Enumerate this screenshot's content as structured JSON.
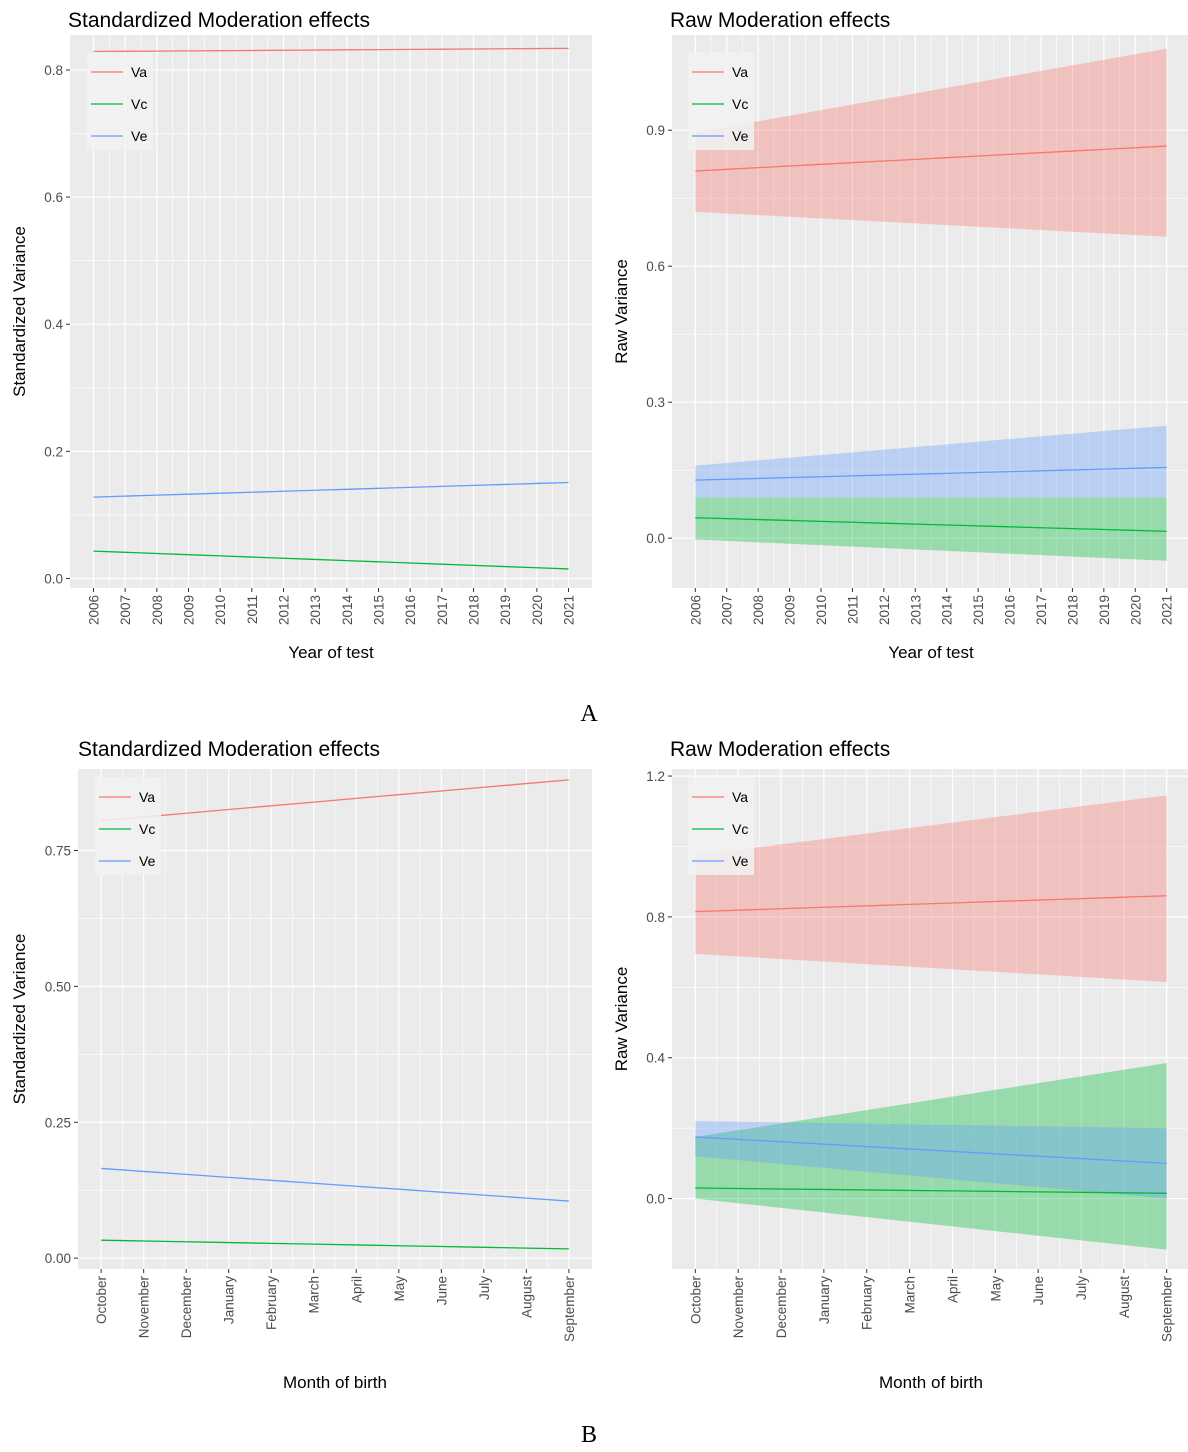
{
  "figure": {
    "panel_labels": [
      "A",
      "B"
    ]
  },
  "colors": {
    "va": "#F8766D",
    "vc": "#00BA38",
    "ve": "#619CFF",
    "panel_bg": "#EBEBEB",
    "grid": "#FFFFFF",
    "text": "#000000",
    "tick_text": "#4D4D4D"
  },
  "chart_data": [
    {
      "type": "line",
      "title": "Standardized Moderation effects",
      "xlabel": "Year of test",
      "ylabel": "Standardized Variance",
      "categories": [
        "2006",
        "2007",
        "2008",
        "2009",
        "2010",
        "2011",
        "2012",
        "2013",
        "2014",
        "2015",
        "2016",
        "2017",
        "2018",
        "2019",
        "2020",
        "2021"
      ],
      "ylim": [
        -0.015,
        0.855
      ],
      "yticks": [
        0.0,
        0.2,
        0.4,
        0.6,
        0.8
      ],
      "ytick_labels": [
        "0.0",
        "0.2",
        "0.4",
        "0.6",
        "0.8"
      ],
      "legend": "top-left",
      "grid": true,
      "series": [
        {
          "name": "Va",
          "color": "#F8766D",
          "start": 0.829,
          "end": 0.834
        },
        {
          "name": "Vc",
          "color": "#00BA38",
          "start": 0.043,
          "end": 0.015
        },
        {
          "name": "Ve",
          "color": "#619CFF",
          "start": 0.128,
          "end": 0.151
        }
      ]
    },
    {
      "type": "line",
      "title": "Raw Moderation effects",
      "xlabel": "Year of test",
      "ylabel": "Raw Variance",
      "categories": [
        "2006",
        "2007",
        "2008",
        "2009",
        "2010",
        "2011",
        "2012",
        "2013",
        "2014",
        "2015",
        "2016",
        "2017",
        "2018",
        "2019",
        "2020",
        "2021"
      ],
      "ylim": [
        -0.11,
        1.11
      ],
      "yticks": [
        0.0,
        0.3,
        0.6,
        0.9
      ],
      "ytick_labels": [
        "0.0",
        "0.3",
        "0.6",
        "0.9"
      ],
      "legend": "top-left",
      "grid": true,
      "series": [
        {
          "name": "Va",
          "color": "#F8766D",
          "start": 0.81,
          "end": 0.865,
          "lower_start": 0.72,
          "lower_end": 0.665,
          "upper_start": 0.895,
          "upper_end": 1.08
        },
        {
          "name": "Vc",
          "color": "#00BA38",
          "start": 0.045,
          "end": 0.015,
          "lower_start": -0.003,
          "lower_end": -0.05,
          "upper_start": 0.09,
          "upper_end": 0.09
        },
        {
          "name": "Ve",
          "color": "#619CFF",
          "start": 0.128,
          "end": 0.156,
          "lower_start": 0.09,
          "lower_end": 0.09,
          "upper_start": 0.16,
          "upper_end": 0.248
        }
      ]
    },
    {
      "type": "line",
      "title": "Standardized Moderation effects",
      "xlabel": "Month of birth",
      "ylabel": "Standardized Variance",
      "categories": [
        "October",
        "November",
        "December",
        "January",
        "February",
        "March",
        "April",
        "May",
        "June",
        "July",
        "August",
        "September"
      ],
      "ylim": [
        -0.02,
        0.9
      ],
      "yticks": [
        0.0,
        0.25,
        0.5,
        0.75
      ],
      "ytick_labels": [
        "0.00",
        "0.25",
        "0.50",
        "0.75"
      ],
      "legend": "top-left",
      "grid": true,
      "series": [
        {
          "name": "Va",
          "color": "#F8766D",
          "start": 0.805,
          "end": 0.88
        },
        {
          "name": "Vc",
          "color": "#00BA38",
          "start": 0.033,
          "end": 0.017
        },
        {
          "name": "Ve",
          "color": "#619CFF",
          "start": 0.165,
          "end": 0.105
        }
      ]
    },
    {
      "type": "line",
      "title": "Raw Moderation effects",
      "xlabel": "Month of birth",
      "ylabel": "Raw Variance",
      "categories": [
        "October",
        "November",
        "December",
        "January",
        "February",
        "March",
        "April",
        "May",
        "June",
        "July",
        "August",
        "September"
      ],
      "ylim": [
        -0.2,
        1.22
      ],
      "yticks": [
        0.0,
        0.4,
        0.8,
        1.2
      ],
      "ytick_labels": [
        "0.0",
        "0.4",
        "0.8",
        "1.2"
      ],
      "legend": "top-left",
      "grid": true,
      "series": [
        {
          "name": "Va",
          "color": "#F8766D",
          "start": 0.815,
          "end": 0.86,
          "lower_start": 0.695,
          "lower_end": 0.615,
          "upper_start": 0.975,
          "upper_end": 1.145
        },
        {
          "name": "Vc",
          "color": "#00BA38",
          "start": 0.03,
          "end": 0.015,
          "lower_start": 0.0,
          "lower_end": -0.145,
          "upper_start": 0.175,
          "upper_end": 0.385
        },
        {
          "name": "Ve",
          "color": "#619CFF",
          "start": 0.175,
          "end": 0.1,
          "lower_start": 0.12,
          "lower_end": 0.0,
          "upper_start": 0.22,
          "upper_end": 0.2
        }
      ]
    }
  ]
}
